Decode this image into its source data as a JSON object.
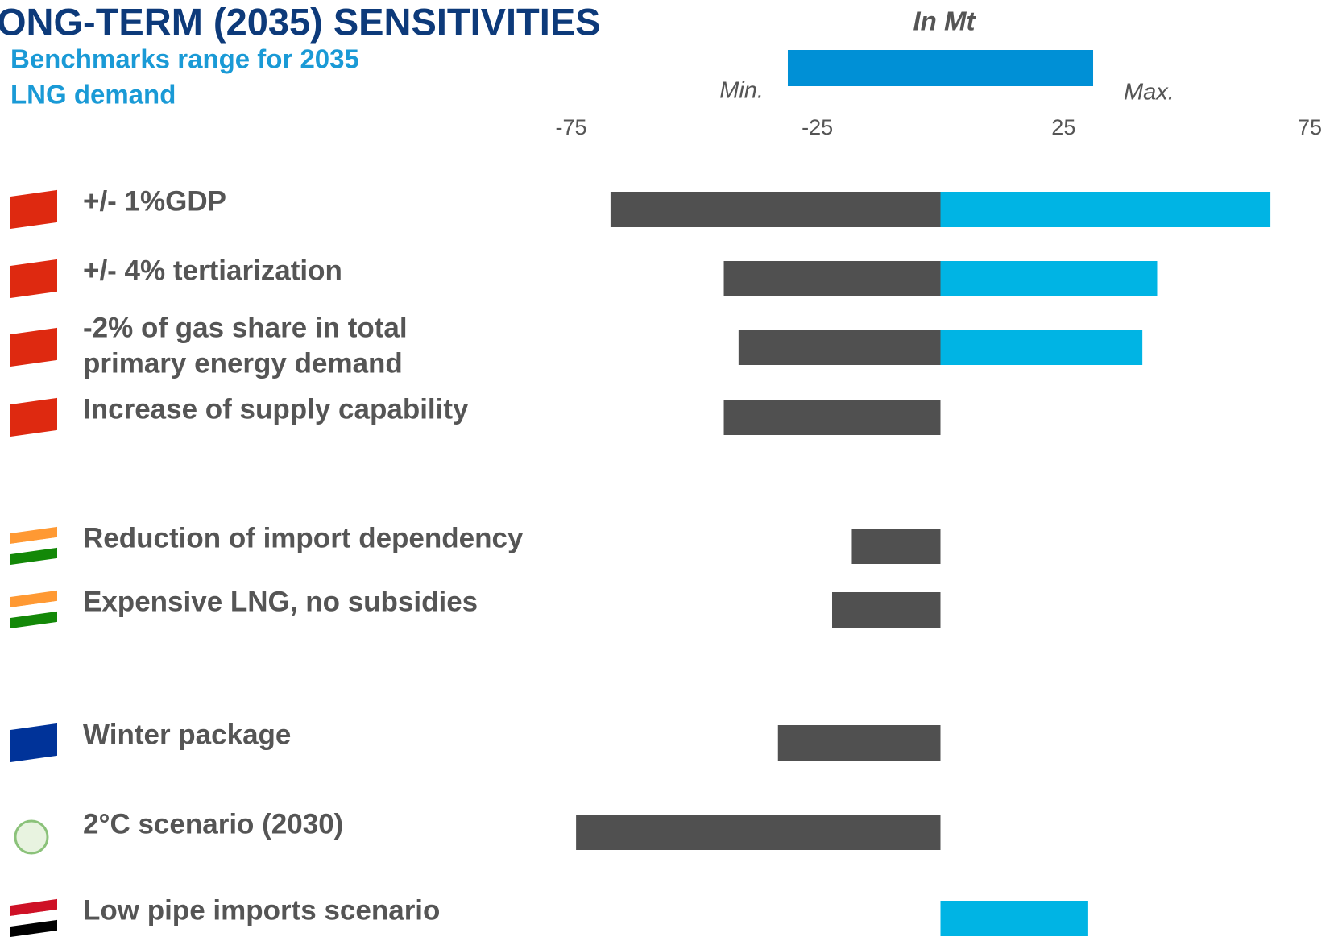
{
  "chart_data": {
    "type": "tornado",
    "title": "ONG-TERM (2035) SENSITIVITIES",
    "unit_label": "In Mt",
    "benchmark": {
      "label": [
        "Benchmarks range for 2035",
        "LNG demand"
      ],
      "min_label": "Min.",
      "max_label": "Max.",
      "values": [
        -31,
        31
      ],
      "color": "#0090d6"
    },
    "xlim": [
      -75,
      75
    ],
    "xticks": [
      -75,
      -25,
      25,
      75
    ],
    "categories": [
      "+/- 1%GDP",
      "+/- 4% tertiarization",
      [
        "-2% of gas share in total",
        "primary energy demand"
      ],
      "Increase of supply capability",
      "Reduction of import dependency",
      "Expensive LNG, no subsidies",
      "Winter package",
      "2°C scenario (2030)",
      "Low pipe imports scenario"
    ],
    "series": [
      {
        "color": "#505050",
        "values": [
          -67,
          -44,
          -41,
          -44,
          -18,
          -22,
          -33,
          -74,
          null
        ]
      },
      {
        "color": "#00b4e4",
        "values": [
          67,
          44,
          41,
          null,
          null,
          null,
          null,
          null,
          30
        ]
      }
    ]
  }
}
